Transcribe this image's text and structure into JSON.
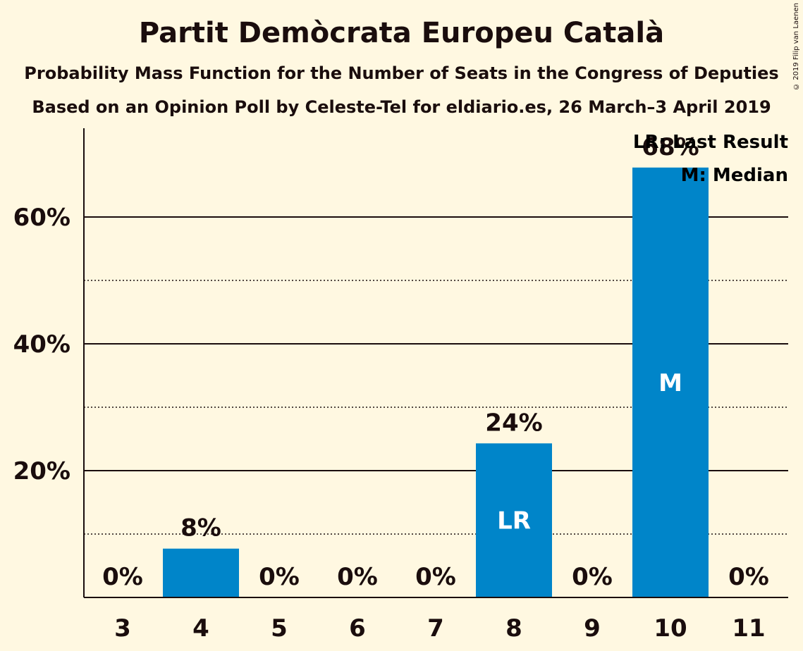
{
  "title": "Partit Demòcrata Europeu Català",
  "subtitle1": "Probability Mass Function for the Number of Seats in the Congress of Deputies",
  "subtitle2": "Based on an Opinion Poll by Celeste-Tel for eldiario.es, 26 March–3 April 2019",
  "copyright": "© 2019 Filip van Laenen",
  "legend": {
    "last_result": "LR: Last Result",
    "median": "M: Median"
  },
  "colors": {
    "background": "#fff8e1",
    "bar": "#0085c9",
    "text": "#1a0d0d"
  },
  "chart_data": {
    "type": "bar",
    "categories": [
      "3",
      "4",
      "5",
      "6",
      "7",
      "8",
      "9",
      "10",
      "11"
    ],
    "values": [
      0,
      7.7,
      0,
      0,
      0,
      24.3,
      0,
      67.8,
      0
    ],
    "value_labels": [
      "0%",
      "8%",
      "0%",
      "0%",
      "0%",
      "24%",
      "0%",
      "68%",
      "0%"
    ],
    "bar_markers": [
      "",
      "",
      "",
      "",
      "",
      "LR",
      "",
      "M",
      ""
    ],
    "ylim": [
      0,
      74
    ],
    "yticks": [
      20,
      40,
      60
    ],
    "ytick_labels": [
      "20%",
      "40%",
      "60%"
    ],
    "minor_gridlines": [
      10,
      30,
      50
    ],
    "grid": true,
    "legend_position": "top-right"
  }
}
